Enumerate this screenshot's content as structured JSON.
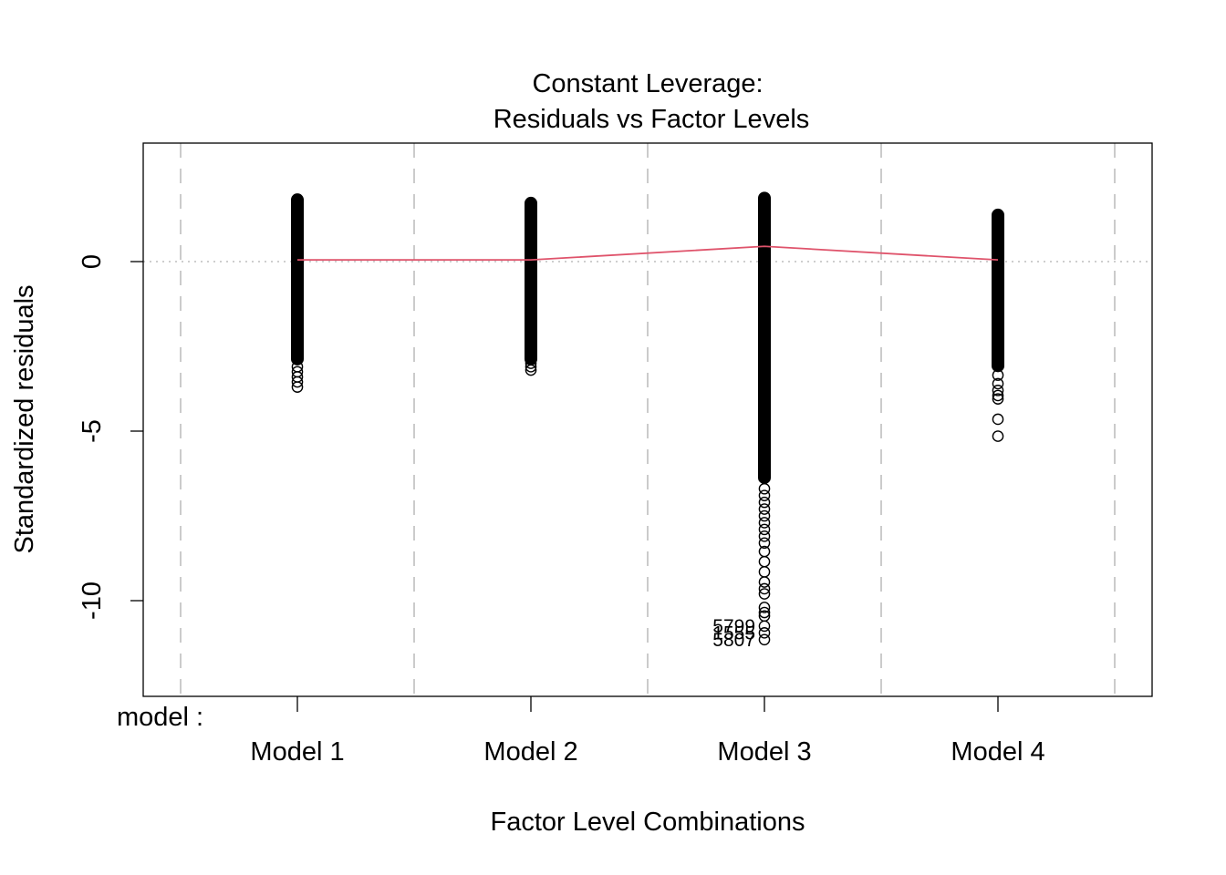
{
  "chart_data": {
    "type": "scatter",
    "title_line1": "Constant Leverage:",
    "title_line2": "Residuals vs Factor Levels",
    "xlabel": "Factor Level Combinations",
    "ylabel": "Standardized residuals",
    "factor_label": "model :",
    "categories": [
      "Model 1",
      "Model 2",
      "Model 3",
      "Model 4"
    ],
    "ylim": [
      -12.8,
      3.5
    ],
    "y_ticks": [
      {
        "value": 0,
        "label": "0"
      },
      {
        "value": -5,
        "label": "-5"
      },
      {
        "value": -10,
        "label": "-10"
      }
    ],
    "reference_line_y": 0,
    "grid": "dashed vertical separators between factor levels",
    "columns": [
      {
        "category": "Model 1",
        "dense_range": [
          -2.9,
          1.85
        ],
        "extra_points": [
          -3.1,
          -3.25,
          -3.4,
          -3.55,
          -3.7
        ]
      },
      {
        "category": "Model 2",
        "dense_range": [
          -2.9,
          1.75
        ],
        "extra_points": [
          -3.0,
          -3.1,
          -3.2
        ]
      },
      {
        "category": "Model 3",
        "dense_range": [
          -6.4,
          1.9
        ],
        "extra_points": [
          -6.7,
          -6.9,
          -7.1,
          -7.3,
          -7.5,
          -7.7,
          -7.9,
          -8.1,
          -8.3,
          -8.55,
          -8.85,
          -9.15,
          -9.45,
          -9.65,
          -9.8,
          -10.2,
          -10.35,
          -10.45
        ]
      },
      {
        "category": "Model 4",
        "dense_range": [
          -3.1,
          1.4
        ],
        "extra_points": [
          -3.35,
          -3.6,
          -3.8,
          -3.95,
          -4.05,
          -4.65,
          -5.15
        ]
      }
    ],
    "labeled_points": [
      {
        "category": "Model 3",
        "y": -10.75,
        "label": "5799"
      },
      {
        "category": "Model 3",
        "y": -10.95,
        "label": "1555"
      },
      {
        "category": "Model 3",
        "y": -11.15,
        "label": "5807"
      }
    ],
    "smooth_line": {
      "categories": [
        "Model 1",
        "Model 2",
        "Model 3",
        "Model 4"
      ],
      "values": [
        0.05,
        0.05,
        0.45,
        0.05
      ]
    },
    "colors": {
      "points": "#000000",
      "smooth": "#DF536B",
      "separator": "#BEBEBE",
      "reference": "#BEBEBE"
    }
  }
}
